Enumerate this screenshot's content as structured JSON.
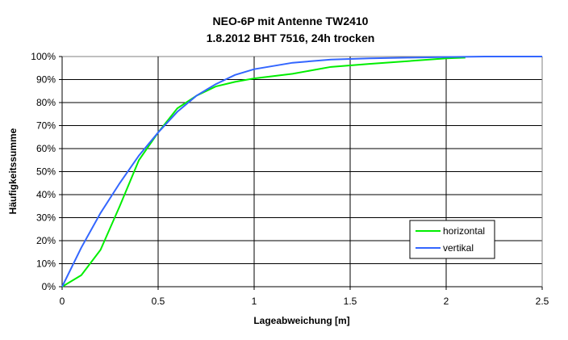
{
  "chart_data": {
    "type": "line",
    "title": [
      "NEO-6P mit Antenne TW2410",
      "1.8.2012 BHT 7516, 24h trocken"
    ],
    "xlabel": "Lageabweichung [m]",
    "ylabel": "Häufigkeitssumme",
    "xlim": [
      0,
      2.5
    ],
    "ylim": [
      0,
      100
    ],
    "xticks": [
      "0",
      "0.5",
      "1",
      "1.5",
      "2",
      "2.5"
    ],
    "xtick_values": [
      0,
      0.5,
      1,
      1.5,
      2,
      2.5
    ],
    "yticks": [
      "0%",
      "10%",
      "20%",
      "30%",
      "40%",
      "50%",
      "60%",
      "70%",
      "80%",
      "90%",
      "100%"
    ],
    "ytick_values": [
      0,
      10,
      20,
      30,
      40,
      50,
      60,
      70,
      80,
      90,
      100
    ],
    "grid": true,
    "legend_position": "bottom-right",
    "series": [
      {
        "name": "horizontal",
        "color": "#00ee00",
        "x": [
          0,
          0.1,
          0.2,
          0.3,
          0.4,
          0.5,
          0.6,
          0.7,
          0.8,
          0.9,
          1.0,
          1.2,
          1.4,
          1.6,
          1.8,
          2.0,
          2.1
        ],
        "y": [
          0,
          5,
          16,
          35,
          55,
          67,
          77.5,
          83,
          87,
          89,
          90.5,
          92.5,
          95.5,
          96.8,
          98,
          99.2,
          99.5
        ]
      },
      {
        "name": "vertikal",
        "color": "#3366ff",
        "x": [
          0,
          0.1,
          0.2,
          0.3,
          0.4,
          0.5,
          0.6,
          0.7,
          0.8,
          0.9,
          1.0,
          1.2,
          1.4,
          1.6,
          1.8,
          2.0,
          2.2,
          2.5
        ],
        "y": [
          0,
          17,
          32,
          45,
          57,
          67,
          76,
          83,
          88,
          92,
          94.5,
          97.3,
          98.7,
          99.2,
          99.5,
          99.8,
          100,
          100
        ]
      }
    ]
  }
}
